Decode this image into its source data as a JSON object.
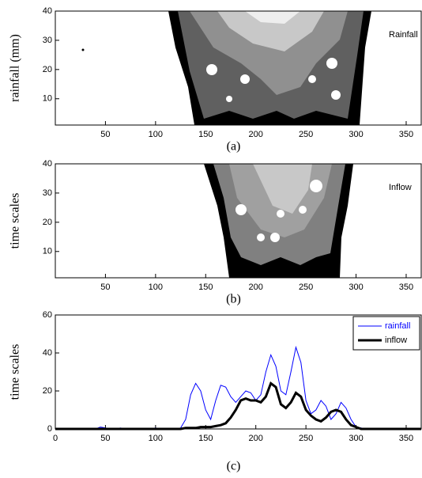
{
  "chart_data": [
    {
      "type": "contour",
      "ylabel": "rainfall (mm)",
      "annotation": "Rainfall",
      "caption": "(a)",
      "xlim": [
        0,
        365
      ],
      "xticks": [
        50,
        100,
        150,
        200,
        250,
        300,
        350
      ],
      "ylim": [
        1,
        40
      ],
      "yticks": [
        10,
        20,
        30,
        40
      ]
    },
    {
      "type": "contour",
      "ylabel": "time scales",
      "annotation": "Inflow",
      "caption": "(b)",
      "xlim": [
        0,
        365
      ],
      "xticks": [
        50,
        100,
        150,
        200,
        250,
        300,
        350
      ],
      "ylim": [
        1,
        40
      ],
      "yticks": [
        10,
        20,
        30,
        40
      ]
    },
    {
      "type": "line",
      "ylabel": "time scales",
      "caption": "(c)",
      "xlim": [
        0,
        365
      ],
      "xticks": [
        0,
        50,
        100,
        150,
        200,
        250,
        300,
        350
      ],
      "ylim": [
        0,
        60
      ],
      "yticks": [
        0,
        20,
        40,
        60
      ],
      "legend": "top-right",
      "x": [
        0,
        5,
        10,
        15,
        20,
        25,
        30,
        35,
        40,
        45,
        50,
        55,
        60,
        65,
        70,
        75,
        80,
        85,
        90,
        95,
        100,
        105,
        110,
        115,
        120,
        125,
        130,
        135,
        140,
        145,
        150,
        155,
        160,
        165,
        170,
        175,
        180,
        185,
        190,
        195,
        200,
        205,
        210,
        215,
        220,
        225,
        230,
        235,
        240,
        245,
        250,
        255,
        260,
        265,
        270,
        275,
        280,
        285,
        290,
        295,
        300,
        305,
        310,
        315,
        320,
        325,
        330,
        335,
        340,
        345,
        350,
        355,
        360,
        365
      ],
      "series": [
        {
          "name": "rainfall",
          "color": "#0000ff",
          "width": 1,
          "values": [
            0,
            0,
            0,
            0,
            0,
            0,
            0,
            0,
            0,
            1,
            0.5,
            0,
            0,
            0.5,
            0,
            0,
            0,
            0,
            0,
            0,
            0.5,
            0,
            0,
            0,
            0,
            0.5,
            5,
            18,
            24,
            20,
            10,
            5,
            15,
            23,
            22,
            17,
            14,
            17,
            20,
            19,
            15,
            18,
            30,
            39,
            33,
            20,
            18,
            30,
            43,
            35,
            15,
            8,
            10,
            15,
            12,
            5,
            8,
            14,
            11,
            5,
            1,
            0.5,
            0,
            0,
            0,
            0,
            0,
            0,
            0,
            0,
            0,
            0,
            0,
            0
          ]
        },
        {
          "name": "inflow",
          "color": "#000000",
          "width": 3,
          "values": [
            0,
            0,
            0,
            0,
            0,
            0,
            0,
            0,
            0,
            0,
            0,
            0,
            0,
            0,
            0,
            0,
            0,
            0,
            0,
            0,
            0,
            0,
            0,
            0,
            0,
            0,
            0.5,
            0.5,
            0.5,
            1,
            1,
            1,
            1.5,
            2,
            3,
            6,
            10,
            15,
            16,
            15,
            15,
            14,
            17,
            24,
            22,
            13,
            11,
            14,
            19,
            17,
            10,
            7,
            5,
            4,
            6,
            9,
            10,
            9,
            5,
            2,
            1,
            0,
            0,
            0,
            0,
            0,
            0,
            0,
            0,
            0,
            0,
            0,
            0,
            0
          ]
        }
      ]
    }
  ]
}
